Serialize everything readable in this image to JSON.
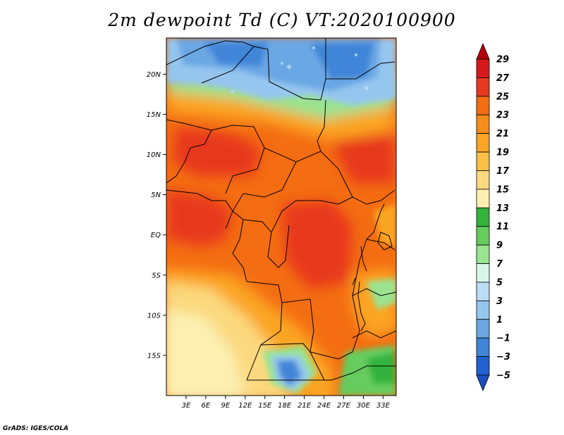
{
  "title": "2m dewpoint Td (C) VT:2020100900",
  "credit": "GrADS: IGES/COLA",
  "map": {
    "lon_range": [
      0,
      35
    ],
    "lat_range": [
      -20,
      24.5
    ],
    "lat_ticks": [
      "20N",
      "15N",
      "10N",
      "5N",
      "EQ",
      "5S",
      "10S",
      "15S"
    ],
    "lat_tick_values": [
      20,
      15,
      10,
      5,
      0,
      -5,
      -10,
      -15
    ],
    "lon_ticks": [
      "3E",
      "6E",
      "9E",
      "12E",
      "15E",
      "18E",
      "21E",
      "24E",
      "27E",
      "30E",
      "33E"
    ],
    "lon_tick_values": [
      3,
      6,
      9,
      12,
      15,
      18,
      21,
      24,
      27,
      30,
      33
    ]
  },
  "colorbar": {
    "labels": [
      "29",
      "27",
      "25",
      "23",
      "21",
      "19",
      "17",
      "15",
      "13",
      "11",
      "9",
      "7",
      "5",
      "3",
      "1",
      "−1",
      "−3",
      "−5"
    ],
    "colors": [
      "#b4000f",
      "#d7191c",
      "#e8391f",
      "#f46d12",
      "#f88c1a",
      "#fba524",
      "#fbc046",
      "#fbd97e",
      "#fcf0b1",
      "#33b33c",
      "#66cc5e",
      "#99e391",
      "#d8f7e8",
      "#bcdcf5",
      "#95c6ef",
      "#6ba7e5",
      "#3f85d8",
      "#1f62d0",
      "#1e4dc0"
    ]
  }
}
